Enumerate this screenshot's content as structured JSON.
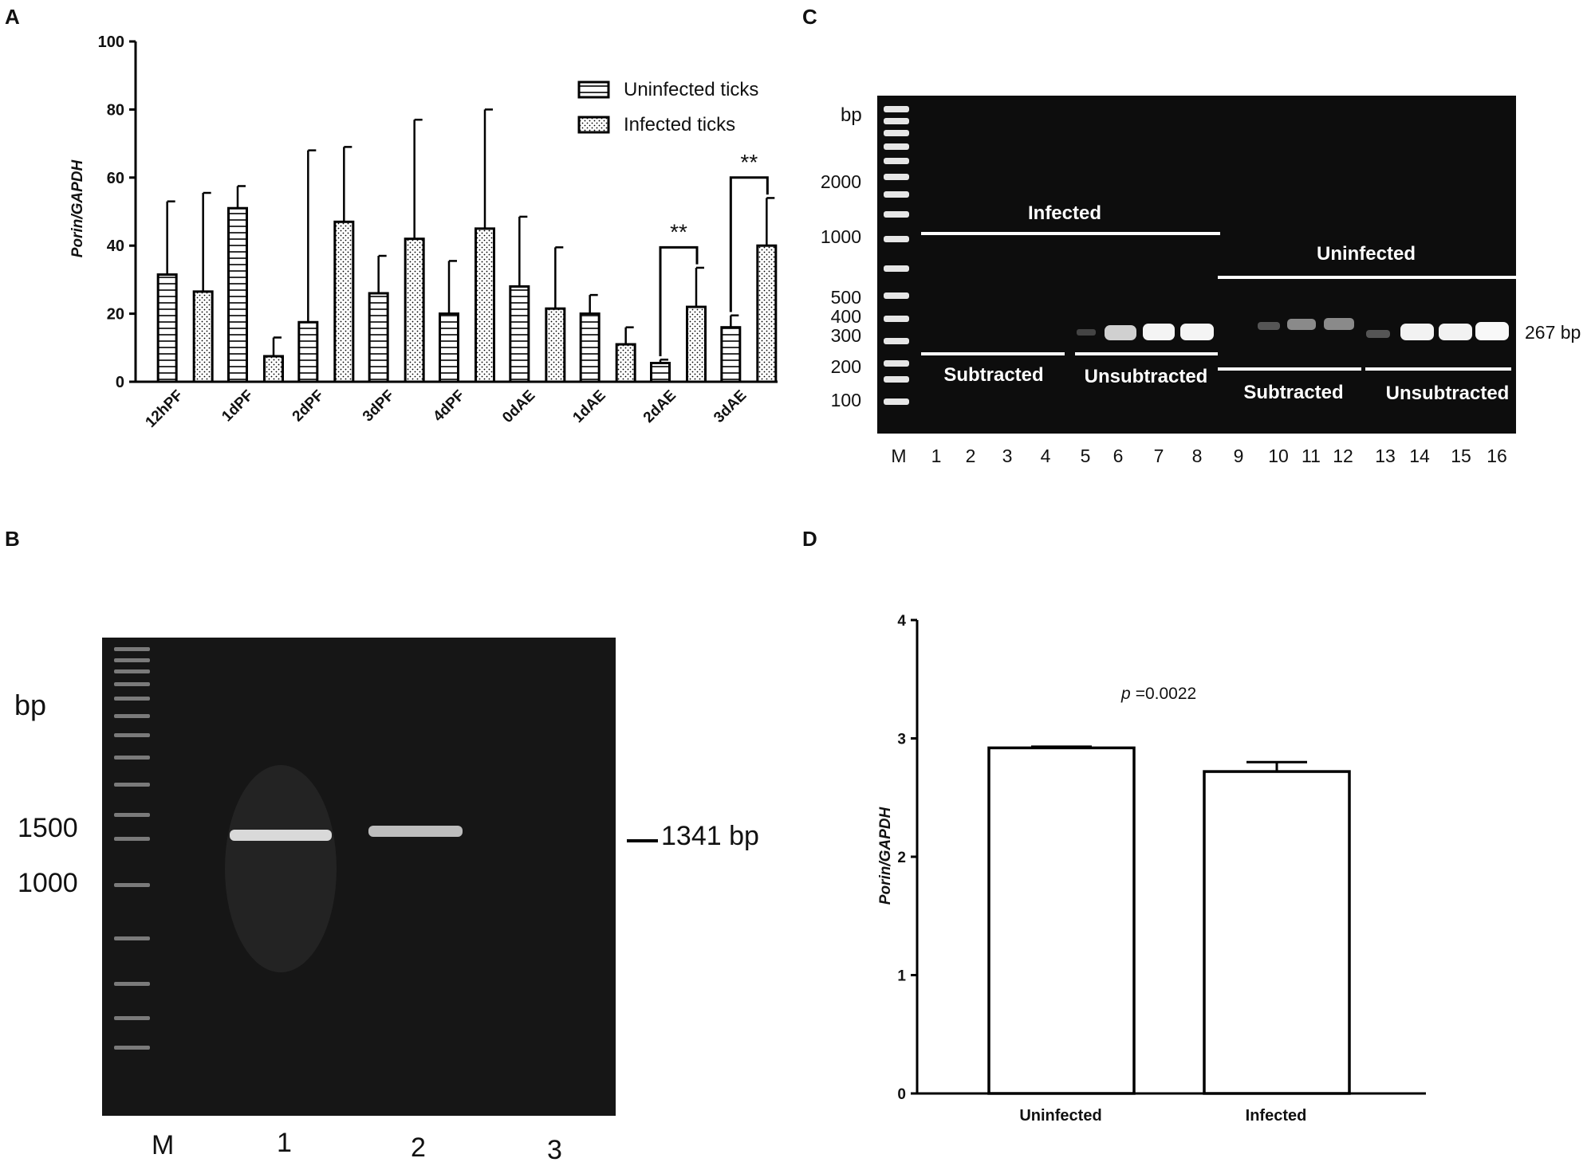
{
  "panels": {
    "a": "A",
    "b": "B",
    "c": "C",
    "d": "D"
  },
  "chart_data": [
    {
      "type": "bar",
      "panel": "A",
      "ylabel": "Porin/GAPDH",
      "ylim": [
        0,
        100
      ],
      "yticks": [
        "0",
        "20",
        "40",
        "60",
        "80",
        "100"
      ],
      "categories": [
        "12hPF",
        "1dPF",
        "2dPF",
        "3dPF",
        "4dPF",
        "0dAE",
        "1dAE",
        "2dAE",
        "3dAE"
      ],
      "legend_position": "top-right",
      "series": [
        {
          "name": "Uninfected ticks",
          "pattern": "horizontal-stripes",
          "values": [
            31.5,
            51,
            17.5,
            26,
            20,
            28,
            20,
            5.5,
            16
          ],
          "errors": [
            21.5,
            6.5,
            50.5,
            11,
            15.5,
            20.5,
            5.5,
            1,
            3.5
          ]
        },
        {
          "name": "Infected ticks",
          "pattern": "dots",
          "values": [
            26.5,
            7.5,
            47,
            42,
            45,
            21.5,
            11,
            22,
            40
          ],
          "errors": [
            29,
            5.5,
            22,
            35,
            35,
            18,
            5,
            11.5,
            14
          ]
        }
      ],
      "significance": [
        {
          "category": "2dAE",
          "label": "**"
        },
        {
          "category": "3dAE",
          "label": "**"
        }
      ]
    },
    {
      "type": "bar",
      "panel": "D",
      "ylabel": "Porin/GAPDH",
      "ylim": [
        0,
        4
      ],
      "yticks": [
        "0",
        "1",
        "2",
        "3",
        "4"
      ],
      "categories": [
        "Uninfected",
        "Infected"
      ],
      "values": [
        2.92,
        2.72
      ],
      "errors": [
        0.01,
        0.08
      ],
      "annotation_p": "p",
      "annotation_value": "=0.0022"
    }
  ],
  "gel_b": {
    "unit": "bp",
    "ladder_labels": [
      "1500",
      "1000"
    ],
    "band_label": "1341 bp",
    "lanes": [
      "M",
      "1",
      "2",
      "3"
    ]
  },
  "gel_c": {
    "unit": "bp",
    "ladder_labels": [
      "2000",
      "1000",
      "500",
      "400",
      "300",
      "200",
      "100"
    ],
    "band_label": "267 bp",
    "group_infected": "Infected",
    "group_uninfected": "Uninfected",
    "subtracted": "Subtracted",
    "unsubtracted": "Unsubtracted",
    "lanes": [
      "M",
      "1",
      "2",
      "3",
      "4",
      "5",
      "6",
      "7",
      "8",
      "9",
      "10",
      "11",
      "12",
      "13",
      "14",
      "15",
      "16"
    ]
  }
}
